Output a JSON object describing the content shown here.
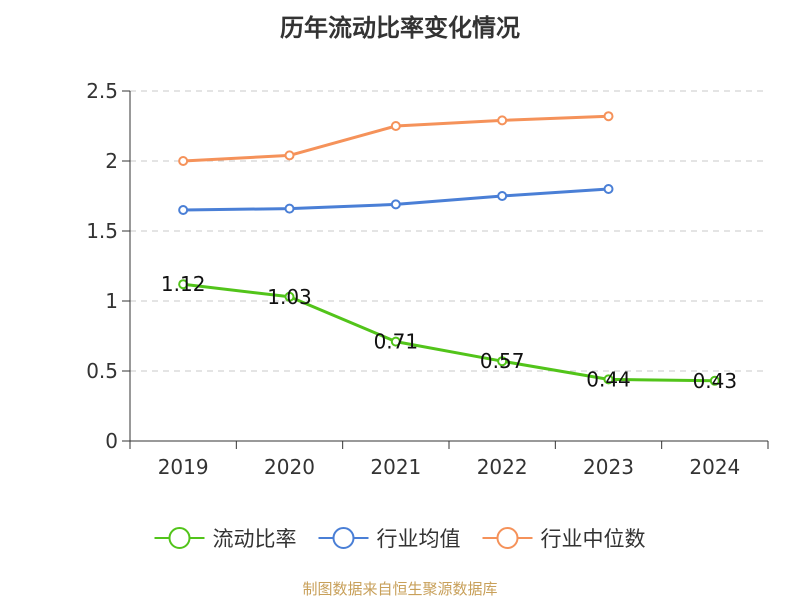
{
  "chart_data": {
    "type": "line",
    "title": "历年流动比率变化情况",
    "categories": [
      "2019",
      "2020",
      "2021",
      "2022",
      "2023",
      "2024"
    ],
    "ylim": [
      0,
      2.5
    ],
    "yticks": [
      "0",
      "0.5",
      "1",
      "1.5",
      "2",
      "2.5"
    ],
    "grid": true,
    "legend_position": "bottom",
    "series": [
      {
        "name": "流动比率",
        "color": "#52c41a",
        "values": [
          1.12,
          1.03,
          0.71,
          0.57,
          0.44,
          0.43
        ],
        "labels": [
          "1.12",
          "1.03",
          "0.71",
          "0.57",
          "0.44",
          "0.43"
        ],
        "show_labels": true
      },
      {
        "name": "行业均值",
        "color": "#4a7fd6",
        "values": [
          1.65,
          1.66,
          1.69,
          1.75,
          1.8,
          null
        ],
        "show_labels": false
      },
      {
        "name": "行业中位数",
        "color": "#f5925a",
        "values": [
          2.0,
          2.04,
          2.25,
          2.29,
          2.32,
          null
        ],
        "show_labels": false
      }
    ]
  },
  "source": "制图数据来自恒生聚源数据库"
}
